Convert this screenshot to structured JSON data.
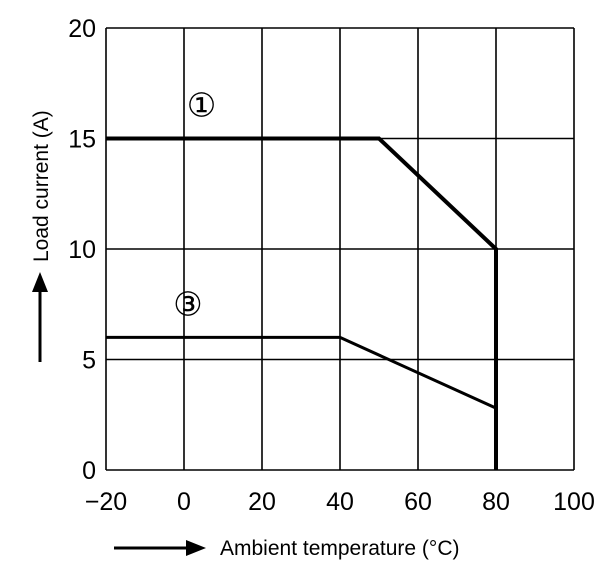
{
  "chart_data": {
    "type": "line",
    "title": "",
    "xlabel": "Ambient temperature (°C)",
    "ylabel": "Load current (A)",
    "xlim": [
      -20,
      100
    ],
    "ylim": [
      0,
      20
    ],
    "x_ticks": [
      -20,
      0,
      20,
      40,
      60,
      80,
      100
    ],
    "y_ticks": [
      0,
      5,
      10,
      15,
      20
    ],
    "x_tick_labels": [
      "−20",
      "0",
      "20",
      "40",
      "60",
      "80",
      "100"
    ],
    "y_tick_labels": [
      "0",
      "5",
      "10",
      "15",
      "20"
    ],
    "grid": true,
    "legend": "none",
    "series": [
      {
        "name": "①",
        "points": [
          [
            -20,
            15
          ],
          [
            50,
            15
          ],
          [
            80,
            10
          ],
          [
            80,
            0
          ]
        ]
      },
      {
        "name": "③",
        "points": [
          [
            -20,
            6
          ],
          [
            40,
            6
          ],
          [
            80,
            2.8
          ],
          [
            80,
            0
          ]
        ]
      }
    ]
  }
}
